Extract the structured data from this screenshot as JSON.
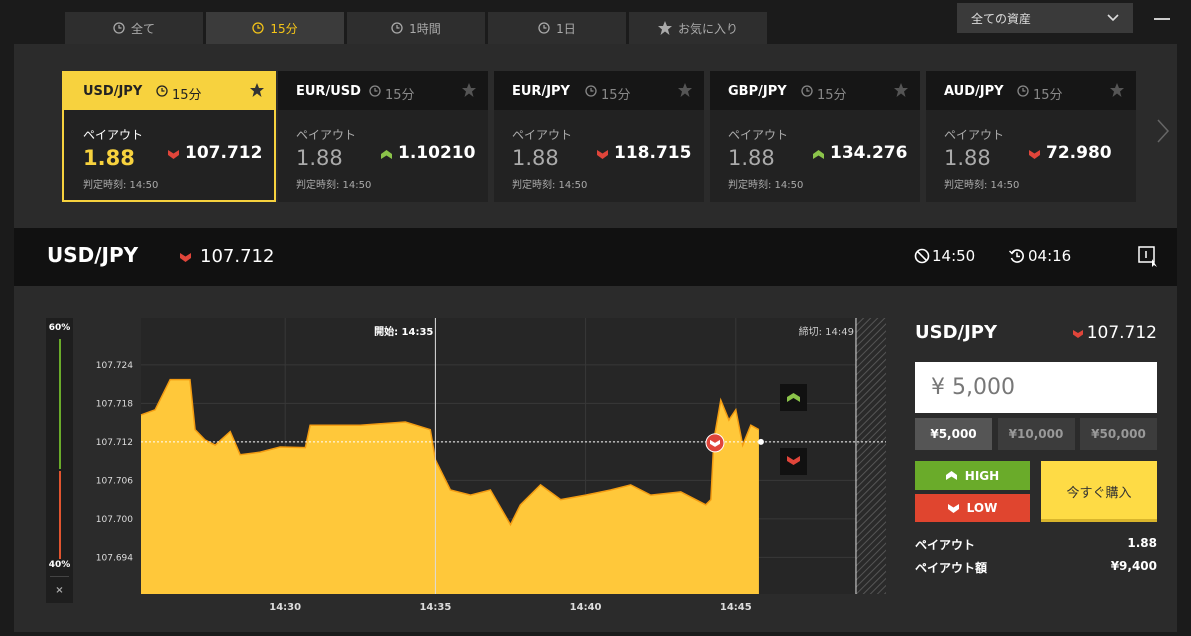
{
  "tabs": [
    "全て",
    "15分",
    "1時間",
    "1日",
    "お気に入り"
  ],
  "asset_select": "全ての資産",
  "cards": [
    {
      "pair": "USD/JPY",
      "period": "15分",
      "payout_label": "ペイアウト",
      "payout": "1.88",
      "price": "107.712",
      "direction": "down",
      "deadline": "判定時刻: 14:50"
    },
    {
      "pair": "EUR/USD",
      "period": "15分",
      "payout_label": "ペイアウト",
      "payout": "1.88",
      "price": "1.10210",
      "direction": "up",
      "deadline": "判定時刻: 14:50"
    },
    {
      "pair": "EUR/JPY",
      "period": "15分",
      "payout_label": "ペイアウト",
      "payout": "1.88",
      "price": "118.715",
      "direction": "down",
      "deadline": "判定時刻: 14:50"
    },
    {
      "pair": "GBP/JPY",
      "period": "15分",
      "payout_label": "ペイアウト",
      "payout": "1.88",
      "price": "134.276",
      "direction": "up",
      "deadline": "判定時刻: 14:50"
    },
    {
      "pair": "AUD/JPY",
      "period": "15分",
      "payout_label": "ペイアウト",
      "payout": "1.88",
      "price": "72.980",
      "direction": "down",
      "deadline": "判定時刻: 14:50"
    }
  ],
  "header": {
    "pair": "USD/JPY",
    "price": "107.712",
    "expiry": "14:50",
    "remaining": "04:16"
  },
  "gauge": {
    "high": "60%",
    "low": "40%",
    "close": "×"
  },
  "price_chart": {
    "type": "area",
    "color": "#ffc83a",
    "line_color": "#f39c12",
    "x": [
      865.2,
      865.67,
      866.17,
      866.83,
      867.0,
      867.33,
      867.67,
      868.17,
      868.5,
      869.17,
      869.83,
      870.67,
      870.83,
      872.5,
      874.0,
      874.83,
      875.0,
      875.5,
      876.17,
      876.83,
      877.5,
      877.83,
      878.5,
      879.17,
      880.0,
      880.83,
      881.5,
      882.17,
      883.17,
      884.0,
      884.17,
      884.27,
      884.5,
      884.77,
      885.0,
      885.23,
      885.5,
      885.77
    ],
    "values": [
      107.7162,
      107.717,
      107.7217,
      107.7217,
      107.7139,
      107.7123,
      107.7115,
      107.7136,
      107.71,
      107.7104,
      107.7112,
      107.7111,
      107.7146,
      107.7146,
      107.7151,
      107.7139,
      107.7092,
      107.7045,
      107.7037,
      107.7045,
      107.6991,
      107.7022,
      107.7053,
      107.703,
      107.7037,
      107.7045,
      107.7053,
      107.7037,
      107.7042,
      107.7022,
      107.703,
      107.7123,
      107.7185,
      107.7154,
      107.717,
      107.7115,
      107.7146,
      107.7139
    ],
    "xlim": [
      865.2,
      890.0
    ],
    "ylim": [
      107.6883,
      107.7313
    ],
    "xticks": [
      {
        "value": 870,
        "label": "14:30"
      },
      {
        "value": 875,
        "label": "14:35"
      },
      {
        "value": 880,
        "label": "14:40"
      },
      {
        "value": 885,
        "label": "14:45"
      }
    ],
    "yticks": [
      107.694,
      {
        "value": 107.7,
        "label": "107.700"
      },
      107.706,
      107.712,
      107.718,
      107.724
    ],
    "current": 107.712,
    "start": 875,
    "end": 889,
    "start_label": "開始: 14:35",
    "end_label": "締切: 14:49"
  },
  "order": {
    "pair": "USD/JPY",
    "price": "107.712",
    "amount": "¥ 5,000",
    "amounts": [
      "¥5,000",
      "¥10,000",
      "¥50,000"
    ],
    "high": "HIGH",
    "low": "LOW",
    "buy": "今すぐ購入",
    "payout_label": "ペイアウト",
    "payout": "1.88",
    "payout_amount_label": "ペイアウト額",
    "payout_amount": "¥9,400"
  }
}
